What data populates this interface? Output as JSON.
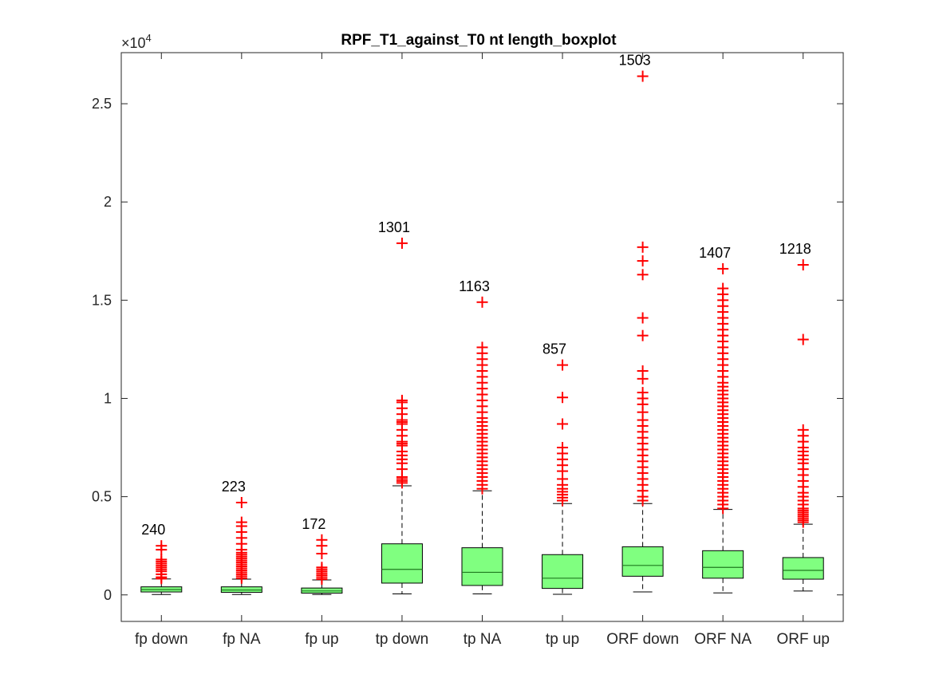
{
  "chart_data": {
    "type": "boxplot",
    "title": "RPF_T1_against_T0 nt length_boxplot",
    "ylabel": "",
    "xlabel": "",
    "y_exponent_label": "×10",
    "y_exponent_power": "4",
    "ylim": [
      -1350,
      27600
    ],
    "yticks": [
      0,
      5000,
      10000,
      15000,
      20000,
      25000
    ],
    "ytick_labels": [
      "0",
      "0.5",
      "1",
      "1.5",
      "2",
      "2.5"
    ],
    "categories": [
      "fp down",
      "fp NA",
      "fp up",
      "tp down",
      "tp NA",
      "tp up",
      "ORF down",
      "ORF NA",
      "ORF up"
    ],
    "counts": [
      "240",
      "223",
      "172",
      "1301",
      "1163",
      "857",
      "1503",
      "1407",
      "1218"
    ],
    "boxes": [
      {
        "whisker_low": 20,
        "q1": 150,
        "median": 270,
        "q3": 410,
        "whisker_high": 810,
        "outliers": [
          830,
          900,
          1050,
          1200,
          1300,
          1400,
          1500,
          1600,
          1700,
          1800,
          2300,
          2500
        ]
      },
      {
        "whisker_low": 20,
        "q1": 130,
        "median": 250,
        "q3": 410,
        "whisker_high": 800,
        "outliers": [
          850,
          950,
          1050,
          1150,
          1250,
          1350,
          1450,
          1550,
          1650,
          1750,
          1850,
          1950,
          2050,
          2150,
          2300,
          2600,
          2900,
          3200,
          3500,
          3700,
          4700
        ]
      },
      {
        "whisker_low": 20,
        "q1": 90,
        "median": 200,
        "q3": 350,
        "whisker_high": 760,
        "outliers": [
          800,
          900,
          1000,
          1100,
          1200,
          1300,
          1400,
          2100,
          2500,
          2800
        ]
      },
      {
        "whisker_low": 50,
        "q1": 600,
        "median": 1300,
        "q3": 2600,
        "whisker_high": 5550,
        "outliers": [
          5700,
          5800,
          5900,
          6000,
          6400,
          6700,
          6900,
          7100,
          7300,
          7600,
          7700,
          7800,
          8100,
          8400,
          8700,
          8800,
          8900,
          9200,
          9500,
          9800,
          9900,
          17900
        ]
      },
      {
        "whisker_low": 50,
        "q1": 480,
        "median": 1150,
        "q3": 2400,
        "whisker_high": 5300,
        "outliers": [
          5400,
          5600,
          5800,
          6000,
          6200,
          6400,
          6600,
          6800,
          7000,
          7200,
          7400,
          7600,
          7800,
          8000,
          8200,
          8400,
          8600,
          8800,
          9000,
          9300,
          9600,
          9900,
          10200,
          10500,
          10800,
          11100,
          11400,
          11700,
          12000,
          12300,
          12600,
          14900
        ]
      },
      {
        "whisker_low": 30,
        "q1": 330,
        "median": 850,
        "q3": 2050,
        "whisker_high": 4650,
        "outliers": [
          4800,
          4950,
          5100,
          5250,
          5400,
          5600,
          5900,
          6300,
          6600,
          6900,
          7200,
          7500,
          8700,
          10050,
          11700
        ]
      },
      {
        "whisker_low": 150,
        "q1": 950,
        "median": 1500,
        "q3": 2450,
        "whisker_high": 4650,
        "outliers": [
          4800,
          5000,
          5300,
          5600,
          5900,
          6200,
          6500,
          6800,
          7100,
          7400,
          7700,
          8000,
          8300,
          8600,
          8900,
          9300,
          9700,
          10000,
          10300,
          11000,
          11400,
          13200,
          14100,
          16300,
          17000,
          17700,
          26400
        ]
      },
      {
        "whisker_low": 100,
        "q1": 850,
        "median": 1400,
        "q3": 2250,
        "whisker_high": 4350,
        "outliers": [
          4400,
          4600,
          4800,
          5000,
          5200,
          5400,
          5600,
          5800,
          6000,
          6200,
          6400,
          6600,
          6800,
          7000,
          7200,
          7400,
          7600,
          7800,
          8000,
          8200,
          8400,
          8600,
          8800,
          9000,
          9200,
          9400,
          9600,
          9800,
          10000,
          10200,
          10400,
          10600,
          10800,
          11100,
          11400,
          11700,
          12000,
          12300,
          12600,
          12900,
          13200,
          13500,
          13800,
          14100,
          14400,
          14700,
          15000,
          15300,
          15600,
          16600
        ]
      },
      {
        "whisker_low": 200,
        "q1": 800,
        "median": 1250,
        "q3": 1900,
        "whisker_high": 3600,
        "outliers": [
          3700,
          3800,
          3900,
          4000,
          4100,
          4200,
          4300,
          4400,
          4600,
          4800,
          5000,
          5200,
          5500,
          5800,
          6100,
          6400,
          6700,
          6900,
          7100,
          7300,
          7500,
          7800,
          8100,
          8400,
          13000,
          16800
        ]
      }
    ],
    "colors": {
      "box_fill": "#80ff80",
      "outlier": "#ff0000",
      "median": "#1f7a1f",
      "axis": "#262626"
    }
  }
}
